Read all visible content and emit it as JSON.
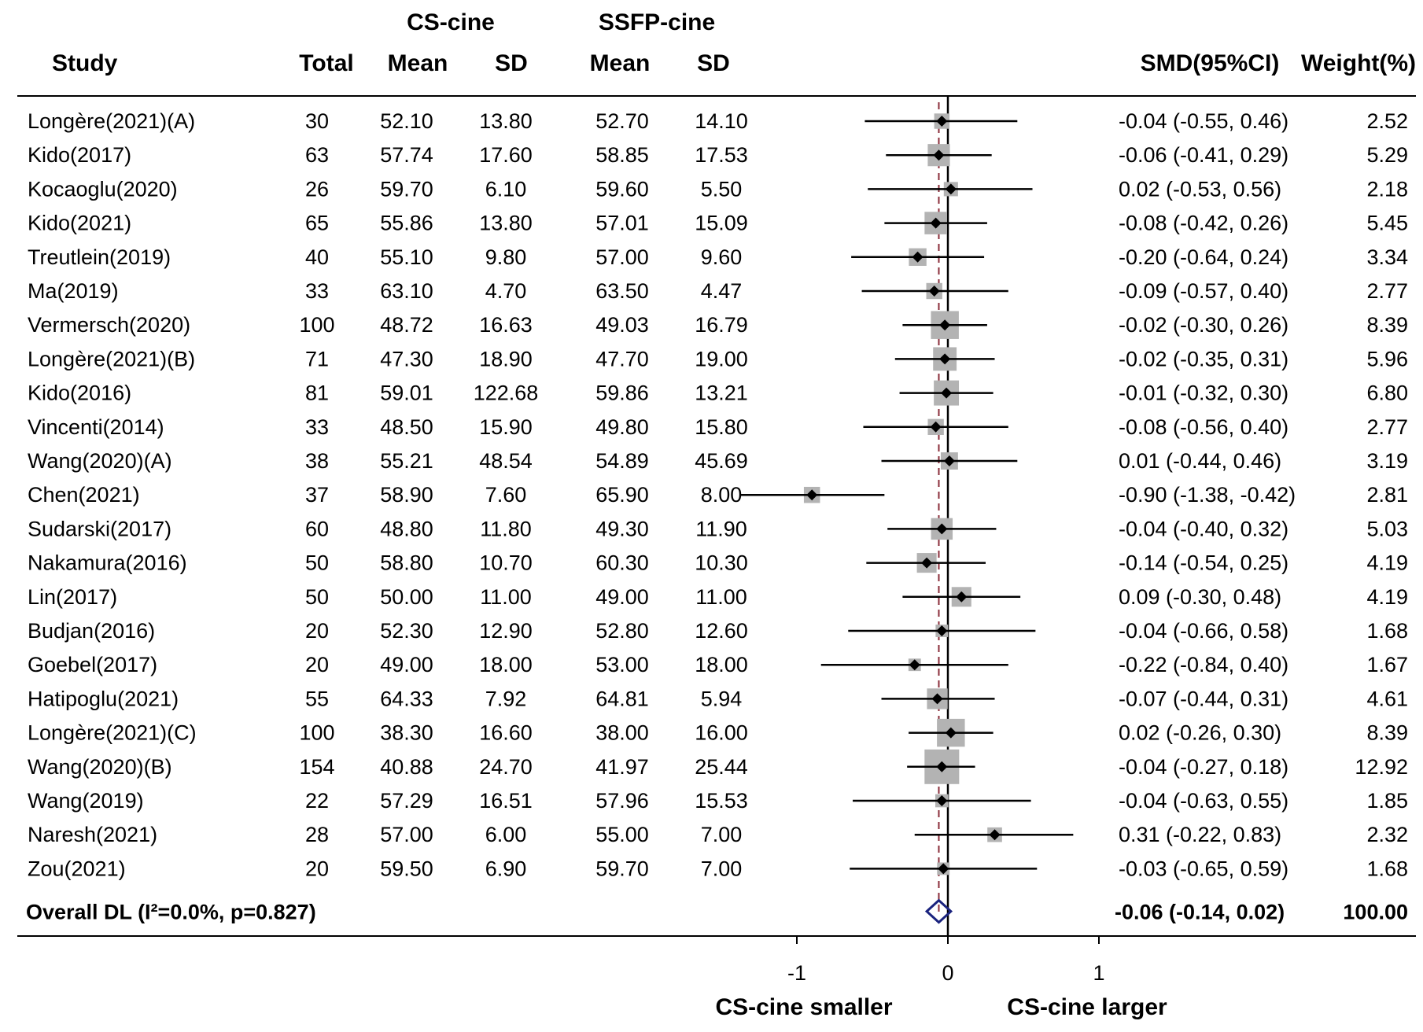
{
  "chart_data": {
    "type": "forest",
    "headers": {
      "study": "Study",
      "total": "Total",
      "group1": "CS-cine",
      "group2": "SSFP-cine",
      "mean": "Mean",
      "sd": "SD",
      "smd": "SMD(95%CI)",
      "weight": "Weight(%)"
    },
    "studies": [
      {
        "study": "Longère(2021)(A)",
        "total": "30",
        "mean1": "52.10",
        "sd1": "13.80",
        "mean2": "52.70",
        "sd2": "14.10",
        "smd": -0.04,
        "lo": -0.55,
        "hi": 0.46,
        "weight": 2.52,
        "smd_text": "-0.04 (-0.55, 0.46)",
        "weight_text": "2.52"
      },
      {
        "study": "Kido(2017)",
        "total": "63",
        "mean1": "57.74",
        "sd1": "17.60",
        "mean2": "58.85",
        "sd2": "17.53",
        "smd": -0.06,
        "lo": -0.41,
        "hi": 0.29,
        "weight": 5.29,
        "smd_text": "-0.06 (-0.41, 0.29)",
        "weight_text": "5.29"
      },
      {
        "study": "Kocaoglu(2020)",
        "total": "26",
        "mean1": "59.70",
        "sd1": "6.10",
        "mean2": "59.60",
        "sd2": "5.50",
        "smd": 0.02,
        "lo": -0.53,
        "hi": 0.56,
        "weight": 2.18,
        "smd_text": "0.02 (-0.53, 0.56)",
        "weight_text": "2.18"
      },
      {
        "study": "Kido(2021)",
        "total": "65",
        "mean1": "55.86",
        "sd1": "13.80",
        "mean2": "57.01",
        "sd2": "15.09",
        "smd": -0.08,
        "lo": -0.42,
        "hi": 0.26,
        "weight": 5.45,
        "smd_text": "-0.08 (-0.42, 0.26)",
        "weight_text": "5.45"
      },
      {
        "study": "Treutlein(2019)",
        "total": "40",
        "mean1": "55.10",
        "sd1": "9.80",
        "mean2": "57.00",
        "sd2": "9.60",
        "smd": -0.2,
        "lo": -0.64,
        "hi": 0.24,
        "weight": 3.34,
        "smd_text": "-0.20 (-0.64, 0.24)",
        "weight_text": "3.34"
      },
      {
        "study": "Ma(2019)",
        "total": "33",
        "mean1": "63.10",
        "sd1": "4.70",
        "mean2": "63.50",
        "sd2": "4.47",
        "smd": -0.09,
        "lo": -0.57,
        "hi": 0.4,
        "weight": 2.77,
        "smd_text": "-0.09 (-0.57, 0.40)",
        "weight_text": "2.77"
      },
      {
        "study": "Vermersch(2020)",
        "total": "100",
        "mean1": "48.72",
        "sd1": "16.63",
        "mean2": "49.03",
        "sd2": "16.79",
        "smd": -0.02,
        "lo": -0.3,
        "hi": 0.26,
        "weight": 8.39,
        "smd_text": "-0.02 (-0.30, 0.26)",
        "weight_text": "8.39"
      },
      {
        "study": "Longère(2021)(B)",
        "total": "71",
        "mean1": "47.30",
        "sd1": "18.90",
        "mean2": "47.70",
        "sd2": "19.00",
        "smd": -0.02,
        "lo": -0.35,
        "hi": 0.31,
        "weight": 5.96,
        "smd_text": "-0.02 (-0.35, 0.31)",
        "weight_text": "5.96"
      },
      {
        "study": "Kido(2016)",
        "total": "81",
        "mean1": "59.01",
        "sd1": "122.68",
        "mean2": "59.86",
        "sd2": "13.21",
        "smd": -0.01,
        "lo": -0.32,
        "hi": 0.3,
        "weight": 6.8,
        "smd_text": "-0.01 (-0.32, 0.30)",
        "weight_text": "6.80"
      },
      {
        "study": "Vincenti(2014)",
        "total": "33",
        "mean1": "48.50",
        "sd1": "15.90",
        "mean2": "49.80",
        "sd2": "15.80",
        "smd": -0.08,
        "lo": -0.56,
        "hi": 0.4,
        "weight": 2.77,
        "smd_text": "-0.08 (-0.56, 0.40)",
        "weight_text": "2.77"
      },
      {
        "study": "Wang(2020)(A)",
        "total": "38",
        "mean1": "55.21",
        "sd1": "48.54",
        "mean2": "54.89",
        "sd2": "45.69",
        "smd": 0.01,
        "lo": -0.44,
        "hi": 0.46,
        "weight": 3.19,
        "smd_text": "0.01 (-0.44, 0.46)",
        "weight_text": "3.19"
      },
      {
        "study": "Chen(2021)",
        "total": "37",
        "mean1": "58.90",
        "sd1": "7.60",
        "mean2": "65.90",
        "sd2": "8.00",
        "smd": -0.9,
        "lo": -1.38,
        "hi": -0.42,
        "weight": 2.81,
        "smd_text": "-0.90 (-1.38, -0.42)",
        "weight_text": "2.81"
      },
      {
        "study": "Sudarski(2017)",
        "total": "60",
        "mean1": "48.80",
        "sd1": "11.80",
        "mean2": "49.30",
        "sd2": "11.90",
        "smd": -0.04,
        "lo": -0.4,
        "hi": 0.32,
        "weight": 5.03,
        "smd_text": "-0.04 (-0.40, 0.32)",
        "weight_text": "5.03"
      },
      {
        "study": "Nakamura(2016)",
        "total": "50",
        "mean1": "58.80",
        "sd1": "10.70",
        "mean2": "60.30",
        "sd2": "10.30",
        "smd": -0.14,
        "lo": -0.54,
        "hi": 0.25,
        "weight": 4.19,
        "smd_text": "-0.14 (-0.54, 0.25)",
        "weight_text": "4.19"
      },
      {
        "study": "Lin(2017)",
        "total": "50",
        "mean1": "50.00",
        "sd1": "11.00",
        "mean2": "49.00",
        "sd2": "11.00",
        "smd": 0.09,
        "lo": -0.3,
        "hi": 0.48,
        "weight": 4.19,
        "smd_text": "0.09 (-0.30, 0.48)",
        "weight_text": "4.19"
      },
      {
        "study": "Budjan(2016)",
        "total": "20",
        "mean1": "52.30",
        "sd1": "12.90",
        "mean2": "52.80",
        "sd2": "12.60",
        "smd": -0.04,
        "lo": -0.66,
        "hi": 0.58,
        "weight": 1.68,
        "smd_text": "-0.04 (-0.66, 0.58)",
        "weight_text": "1.68"
      },
      {
        "study": "Goebel(2017)",
        "total": "20",
        "mean1": "49.00",
        "sd1": "18.00",
        "mean2": "53.00",
        "sd2": "18.00",
        "smd": -0.22,
        "lo": -0.84,
        "hi": 0.4,
        "weight": 1.67,
        "smd_text": "-0.22 (-0.84, 0.40)",
        "weight_text": "1.67"
      },
      {
        "study": "Hatipoglu(2021)",
        "total": "55",
        "mean1": "64.33",
        "sd1": "7.92",
        "mean2": "64.81",
        "sd2": "5.94",
        "smd": -0.07,
        "lo": -0.44,
        "hi": 0.31,
        "weight": 4.61,
        "smd_text": "-0.07 (-0.44, 0.31)",
        "weight_text": "4.61"
      },
      {
        "study": "Longère(2021)(C)",
        "total": "100",
        "mean1": "38.30",
        "sd1": "16.60",
        "mean2": "38.00",
        "sd2": "16.00",
        "smd": 0.02,
        "lo": -0.26,
        "hi": 0.3,
        "weight": 8.39,
        "smd_text": "0.02 (-0.26, 0.30)",
        "weight_text": "8.39"
      },
      {
        "study": "Wang(2020)(B)",
        "total": "154",
        "mean1": "40.88",
        "sd1": "24.70",
        "mean2": "41.97",
        "sd2": "25.44",
        "smd": -0.04,
        "lo": -0.27,
        "hi": 0.18,
        "weight": 12.92,
        "smd_text": "-0.04 (-0.27, 0.18)",
        "weight_text": "12.92"
      },
      {
        "study": "Wang(2019)",
        "total": "22",
        "mean1": "57.29",
        "sd1": "16.51",
        "mean2": "57.96",
        "sd2": "15.53",
        "smd": -0.04,
        "lo": -0.63,
        "hi": 0.55,
        "weight": 1.85,
        "smd_text": "-0.04 (-0.63, 0.55)",
        "weight_text": "1.85"
      },
      {
        "study": "Naresh(2021)",
        "total": "28",
        "mean1": "57.00",
        "sd1": "6.00",
        "mean2": "55.00",
        "sd2": "7.00",
        "smd": 0.31,
        "lo": -0.22,
        "hi": 0.83,
        "weight": 2.32,
        "smd_text": "0.31 (-0.22, 0.83)",
        "weight_text": "2.32"
      },
      {
        "study": "Zou(2021)",
        "total": "20",
        "mean1": "59.50",
        "sd1": "6.90",
        "mean2": "59.70",
        "sd2": "7.00",
        "smd": -0.03,
        "lo": -0.65,
        "hi": 0.59,
        "weight": 1.68,
        "smd_text": "-0.03 (-0.65, 0.59)",
        "weight_text": "1.68"
      }
    ],
    "overall": {
      "label": "Overall DL (I²=0.0%, p=0.827)",
      "smd": -0.06,
      "lo": -0.14,
      "hi": 0.02,
      "smd_text": "-0.06 (-0.14, 0.02)",
      "weight_text": "100.00"
    },
    "xaxis": {
      "ticks": [
        -1,
        0,
        1
      ],
      "tick_labels": [
        "-1",
        "0",
        "1"
      ],
      "xlim": [
        -1.38,
        1.0
      ],
      "left_label": "CS-cine smaller",
      "right_label": "CS-cine larger"
    },
    "colors": {
      "line": "#000000",
      "box": "#b3b3b3",
      "point": "#000000",
      "diamond": "#1a237e",
      "ref_line": "#8b2d3a"
    }
  }
}
